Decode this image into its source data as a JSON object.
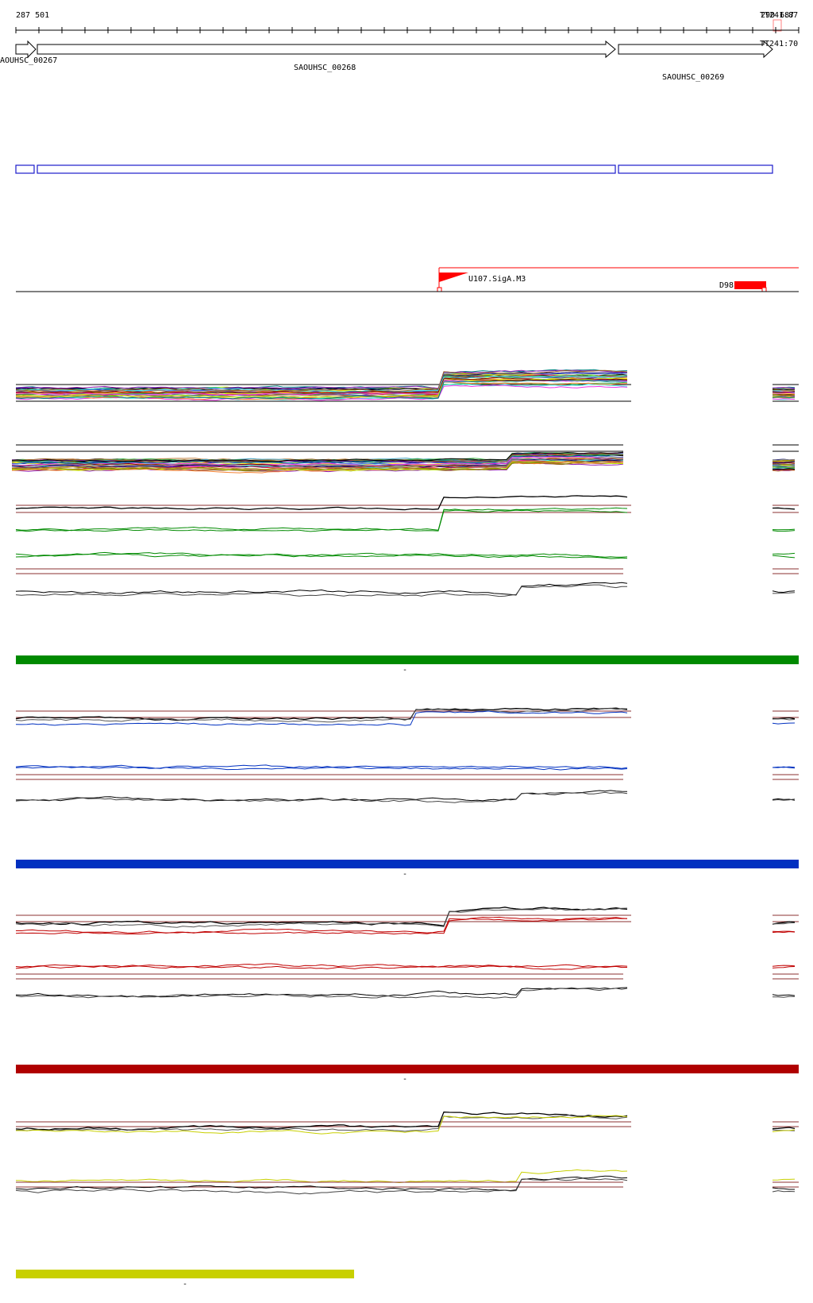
{
  "ruler": {
    "start_label": "287 501",
    "end_label_a": "TT241:87",
    "end_label_b": "TT241:70",
    "end_overlap_label": "290 687"
  },
  "genes": [
    {
      "id": "gene-0",
      "label": "AOUHSC_00267"
    },
    {
      "id": "gene-1",
      "label": "SAOUHSC_00268"
    },
    {
      "id": "gene-2",
      "label": "SAOUHSC_00269"
    }
  ],
  "features": {
    "promoter_label": "U107.SigA.M3",
    "terminator_label": "D98"
  },
  "colors": {
    "green_band": "#008a00",
    "blue_band": "#0030c0",
    "red_band": "#b00000",
    "yellow_band": "#c8d000",
    "gene_box": "#1a1acc",
    "feature_red": "#ff0000"
  },
  "panels": [
    {
      "name": "green-condition",
      "color": "#008a00",
      "band_marker": "-"
    },
    {
      "name": "blue-condition",
      "color": "#0030c0",
      "band_marker": "-"
    },
    {
      "name": "red-condition",
      "color": "#b00000",
      "band_marker": "-"
    },
    {
      "name": "yellow-condition",
      "color": "#c8d000",
      "band_marker": "-"
    }
  ]
}
